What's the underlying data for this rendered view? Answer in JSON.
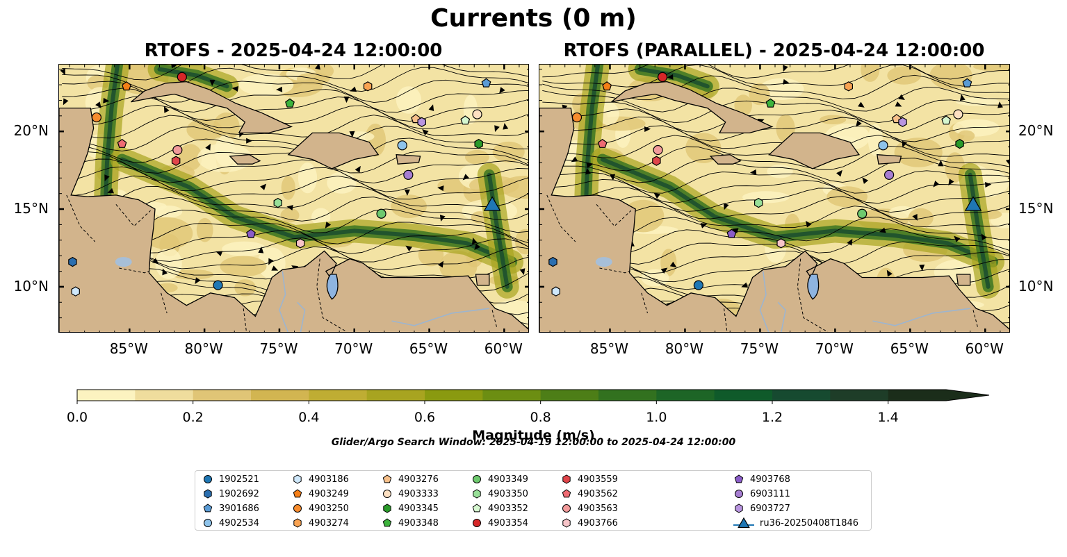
{
  "figure": {
    "suptitle": "Currents (0 m)",
    "left_panel_title": "RTOFS - 2025-04-24 12:00:00",
    "right_panel_title": "RTOFS (PARALLEL) - 2025-04-24 12:00:00",
    "lon_ticks": [
      "85°W",
      "80°W",
      "75°W",
      "70°W",
      "65°W",
      "60°W"
    ],
    "lat_ticks": [
      "20°N",
      "15°N",
      "10°N"
    ],
    "extent": {
      "lon_min": -89.7,
      "lon_max": -58.3,
      "lat_min": 7.0,
      "lat_max": 24.3
    },
    "colorbar": {
      "label": "Magnitude (m/s)",
      "min": 0.0,
      "max": 1.5,
      "step": 0.1,
      "extend": "max",
      "ticks": [
        "0.0",
        "0.2",
        "0.4",
        "0.6",
        "0.8",
        "1.0",
        "1.2",
        "1.4"
      ],
      "colors": [
        "#fcf3c0",
        "#efdd9d",
        "#e0c576",
        "#d2b551",
        "#bfad33",
        "#a8a420",
        "#8a9a10",
        "#6c8e12",
        "#4d7e17",
        "#32711f",
        "#1d6526",
        "#0f5a2a",
        "#164a30",
        "#1e3d28",
        "#1b2d1a"
      ]
    },
    "search_window": "Glider/Argo Search Window: 2025-04-19 12:00:00 to 2025-04-24 12:00:00",
    "land_color": "#d2b48c",
    "lake_color": "#8eb4e0"
  },
  "platforms": [
    {
      "id": "1902521",
      "marker": "circle",
      "color": "#1f77b4",
      "lon": -79.1,
      "lat": 10.1
    },
    {
      "id": "1902692",
      "marker": "hexagon",
      "color": "#2b6fb0",
      "lon": -88.8,
      "lat": 11.6
    },
    {
      "id": "3901686",
      "marker": "pentagon",
      "color": "#5a9bd5",
      "lon": -61.2,
      "lat": 23.1
    },
    {
      "id": "4902534",
      "marker": "circle",
      "color": "#8ec3ea",
      "lon": -66.8,
      "lat": 19.1
    },
    {
      "id": "4903186",
      "marker": "hexagon",
      "color": "#cfe8fb",
      "lon": -88.6,
      "lat": 9.7
    },
    {
      "id": "4903249",
      "marker": "pentagon",
      "color": "#f57f17",
      "lon": -85.2,
      "lat": 22.9
    },
    {
      "id": "4903250",
      "marker": "circle",
      "color": "#f78c2e",
      "lon": -87.2,
      "lat": 20.9
    },
    {
      "id": "4903274",
      "marker": "hexagon",
      "color": "#f9a352",
      "lon": -69.1,
      "lat": 22.9
    },
    {
      "id": "4903276",
      "marker": "pentagon",
      "color": "#f7c08a",
      "lon": -65.9,
      "lat": 20.8
    },
    {
      "id": "4903333",
      "marker": "circle",
      "color": "#fde0c2",
      "lon": -61.8,
      "lat": 21.1
    },
    {
      "id": "4903345",
      "marker": "hexagon",
      "color": "#2a9b2a",
      "lon": -61.7,
      "lat": 19.2
    },
    {
      "id": "4903348",
      "marker": "pentagon",
      "color": "#3cb33c",
      "lon": -74.3,
      "lat": 21.8
    },
    {
      "id": "4903349",
      "marker": "circle",
      "color": "#6ec96e",
      "lon": -68.2,
      "lat": 14.7
    },
    {
      "id": "4903350",
      "marker": "hexagon",
      "color": "#98e098",
      "lon": -75.1,
      "lat": 15.4
    },
    {
      "id": "4903352",
      "marker": "pentagon",
      "color": "#d6f7d0",
      "lon": -62.6,
      "lat": 20.7
    },
    {
      "id": "4903354",
      "marker": "circle",
      "color": "#d62728",
      "lon": -81.5,
      "lat": 23.5
    },
    {
      "id": "4903559",
      "marker": "hexagon",
      "color": "#e0454a",
      "lon": -81.9,
      "lat": 18.1
    },
    {
      "id": "4903562",
      "marker": "pentagon",
      "color": "#ef6b73",
      "lon": -85.5,
      "lat": 19.2
    },
    {
      "id": "4903563",
      "marker": "circle",
      "color": "#f29a9a",
      "lon": -81.8,
      "lat": 18.8
    },
    {
      "id": "4903766",
      "marker": "hexagon",
      "color": "#f7c4c8",
      "lon": -73.6,
      "lat": 12.8
    },
    {
      "id": "4903768",
      "marker": "pentagon",
      "color": "#8a5cc8",
      "lon": -76.9,
      "lat": 13.4
    },
    {
      "id": "6903111",
      "marker": "circle",
      "color": "#a77ed2",
      "lon": -66.4,
      "lat": 17.2
    },
    {
      "id": "6903727",
      "marker": "hexagon",
      "color": "#b995e0",
      "lon": -65.5,
      "lat": 20.6
    },
    {
      "id": "ru36-20250408T1846",
      "marker": "triangle",
      "color": "#1f77b4",
      "lon": -60.8,
      "lat": 15.2
    }
  ]
}
